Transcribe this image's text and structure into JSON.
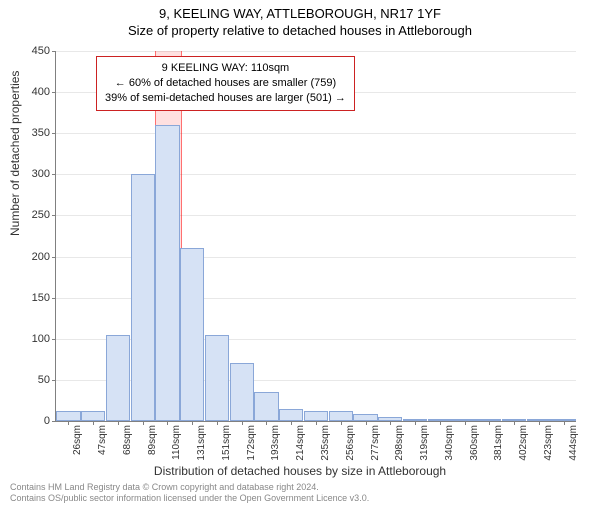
{
  "titles": {
    "line1": "9, KEELING WAY, ATTLEBOROUGH, NR17 1YF",
    "line2": "Size of property relative to detached houses in Attleborough"
  },
  "chart": {
    "type": "histogram",
    "categories": [
      "26sqm",
      "47sqm",
      "68sqm",
      "89sqm",
      "110sqm",
      "131sqm",
      "151sqm",
      "172sqm",
      "193sqm",
      "214sqm",
      "235sqm",
      "256sqm",
      "277sqm",
      "298sqm",
      "319sqm",
      "340sqm",
      "360sqm",
      "381sqm",
      "402sqm",
      "423sqm",
      "444sqm"
    ],
    "values": [
      12,
      12,
      105,
      300,
      360,
      210,
      105,
      70,
      35,
      15,
      12,
      12,
      8,
      5,
      2,
      2,
      2,
      2,
      2,
      2,
      0
    ],
    "bar_fill": "#d6e2f5",
    "bar_border": "#8aa7d8",
    "highlight_index": 4,
    "highlight_fill": "rgba(255,0,0,0.12)",
    "ylabel": "Number of detached properties",
    "xlabel": "Distribution of detached houses by size in Attleborough",
    "ylim": [
      0,
      450
    ],
    "ytick_step": 50,
    "background_color": "#ffffff",
    "grid_color": "#e8e8e8",
    "axis_color": "#808080",
    "label_fontsize": 12,
    "tick_fontsize": 11
  },
  "annotation": {
    "line1": "9 KEELING WAY: 110sqm",
    "line2": "← 60% of detached houses are smaller (759)",
    "line3": "39% of semi-detached houses are larger (501) →",
    "border_color": "#cc2222"
  },
  "footer": {
    "line1": "Contains HM Land Registry data © Crown copyright and database right 2024.",
    "line2": "Contains OS/public sector information licensed under the Open Government Licence v3.0."
  }
}
